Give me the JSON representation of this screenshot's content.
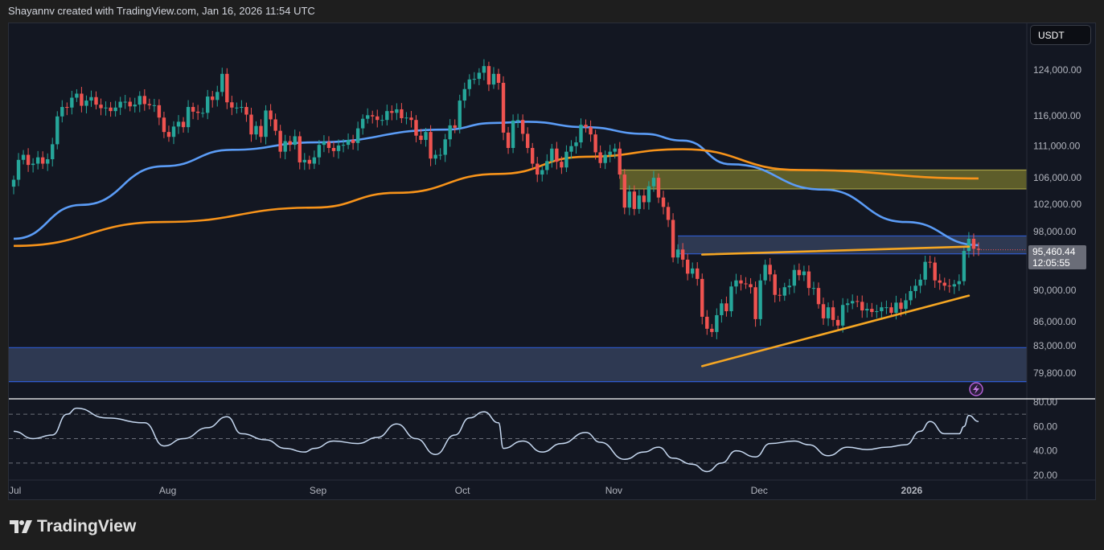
{
  "header": {
    "caption": "Shayannv created with TradingView.com, Jan 16, 2026 11:54 UTC"
  },
  "currency": "USDT",
  "last_price": {
    "price": "95,460.44",
    "countdown": "12:05:55"
  },
  "logo": {
    "text": "TradingView"
  },
  "colors": {
    "up": "#26a69a",
    "down": "#ef5350",
    "ma_fast": "#5b9cf6",
    "ma_slow": "#f7931a",
    "trendline": "#f5a623",
    "supply_zone": "#6b6a2c",
    "demand_zone": "#34405a",
    "rsi": "#c6d8f0",
    "bg": "#131722"
  },
  "icons": {
    "alert": "lightning-icon"
  },
  "chart_data": [
    {
      "type": "candlestick",
      "scale": "log",
      "start_date": "2025-07-01",
      "y_ticks": [
        "124,000.00",
        "116,000.00",
        "111,000.00",
        "106,000.00",
        "102,000.00",
        "98,000.00",
        "90,000.00",
        "86,000.00",
        "83,000.00",
        "79,800.00"
      ],
      "y_tick_values": [
        124000,
        116000,
        111000,
        106000,
        102000,
        98000,
        90000,
        86000,
        83000,
        79800
      ],
      "x_ticks": [
        {
          "label": "Jul",
          "date": "2025-07-01"
        },
        {
          "label": "Aug",
          "date": "2025-08-01"
        },
        {
          "label": "Sep",
          "date": "2025-09-01"
        },
        {
          "label": "Oct",
          "date": "2025-10-01"
        },
        {
          "label": "Nov",
          "date": "2025-11-01"
        },
        {
          "label": "Dec",
          "date": "2025-12-01"
        },
        {
          "label": "2026",
          "date": "2026-01-01"
        }
      ],
      "closes_k": [
        105.7,
        108.8,
        109.6,
        108.0,
        108.2,
        109.2,
        108.2,
        108.9,
        111.3,
        115.9,
        117.5,
        117.4,
        119.1,
        119.8,
        117.7,
        118.6,
        119.2,
        117.9,
        117.3,
        117.4,
        116.8,
        117.4,
        118.4,
        118.4,
        117.6,
        117.9,
        119.4,
        118.0,
        117.8,
        117.8,
        115.7,
        113.3,
        112.5,
        114.2,
        115.0,
        114.1,
        117.5,
        116.7,
        116.5,
        116.5,
        119.3,
        118.7,
        120.1,
        123.3,
        118.3,
        117.4,
        117.4,
        117.5,
        116.2,
        112.9,
        114.3,
        112.5,
        116.9,
        115.4,
        113.5,
        110.1,
        111.8,
        111.2,
        112.6,
        108.4,
        108.8,
        108.2,
        109.2,
        111.2,
        111.7,
        110.7,
        110.2,
        111.1,
        111.2,
        112.0,
        111.5,
        113.9,
        115.5,
        116.1,
        115.9,
        115.3,
        115.3,
        116.8,
        116.5,
        117.1,
        115.6,
        115.7,
        115.3,
        112.7,
        112.0,
        113.3,
        109.0,
        109.6,
        109.6,
        112.1,
        114.4,
        114.0,
        118.6,
        120.6,
        122.3,
        122.4,
        123.5,
        124.7,
        121.4,
        123.3,
        121.7,
        113.2,
        110.7,
        115.2,
        115.3,
        113.0,
        110.7,
        108.2,
        106.5,
        107.2,
        108.6,
        110.6,
        108.5,
        107.6,
        110.1,
        111.0,
        111.6,
        114.5,
        114.1,
        112.9,
        110.0,
        108.3,
        109.6,
        110.1,
        110.6,
        106.5,
        101.5,
        103.9,
        101.3,
        103.3,
        102.3,
        104.7,
        106.0,
        103.0,
        101.6,
        99.7,
        94.4,
        95.5,
        94.1,
        92.2,
        92.9,
        91.5,
        86.6,
        85.1,
        84.7,
        86.8,
        88.3,
        87.3,
        90.5,
        91.3,
        90.9,
        90.8,
        90.4,
        86.3,
        91.3,
        93.4,
        92.1,
        89.4,
        89.3,
        90.4,
        90.6,
        92.7,
        92.0,
        92.5,
        90.3,
        90.3,
        88.2,
        86.4,
        87.8,
        86.2,
        85.5,
        88.1,
        88.3,
        88.6,
        88.5,
        87.4,
        87.6,
        87.2,
        87.3,
        87.8,
        87.8,
        87.1,
        88.4,
        87.6,
        88.7,
        89.9,
        90.6,
        91.4,
        93.8,
        93.7,
        91.3,
        91.0,
        90.6,
        90.5,
        90.8,
        91.2,
        95.3,
        97.0,
        95.6,
        95.46
      ],
      "moving_averages": [
        {
          "points": [
            [
              "2025-07-01",
              97.0
            ],
            [
              "2025-07-15",
              101.9
            ],
            [
              "2025-08-01",
              107.8
            ],
            [
              "2025-08-15",
              110.4
            ],
            [
              "2025-09-01",
              111.6
            ],
            [
              "2025-09-28",
              113.7
            ],
            [
              "2025-10-08",
              114.8
            ],
            [
              "2025-10-15",
              115.0
            ],
            [
              "2025-10-27",
              114.1
            ],
            [
              "2025-11-08",
              113.0
            ],
            [
              "2025-11-16",
              111.9
            ],
            [
              "2025-11-26",
              108.1
            ],
            [
              "2025-12-15",
              104.2
            ],
            [
              "2026-01-01",
              99.4
            ],
            [
              "2026-01-16",
              96.1
            ]
          ]
        },
        {
          "points": [
            [
              "2025-07-01",
              96.0
            ],
            [
              "2025-08-01",
              99.4
            ],
            [
              "2025-09-01",
              101.5
            ],
            [
              "2025-09-18",
              103.7
            ],
            [
              "2025-10-09",
              106.6
            ],
            [
              "2025-10-27",
              109.3
            ],
            [
              "2025-11-16",
              110.5
            ],
            [
              "2025-12-10",
              107.2
            ],
            [
              "2026-01-16",
              105.9
            ]
          ]
        }
      ],
      "zones": [
        {
          "kind": "supply",
          "from": "2025-11-03",
          "top": 107.2,
          "bottom": 104.3
        },
        {
          "kind": "resistance",
          "from": "2025-11-15",
          "top": 97.4,
          "bottom": 94.9
        },
        {
          "kind": "support",
          "from": "2025-06-30",
          "top": 82.8,
          "bottom": 78.8
        }
      ],
      "trendlines": [
        {
          "from": [
            "2025-11-20",
            94.8
          ],
          "to": [
            "2026-01-14",
            95.9
          ]
        },
        {
          "from": [
            "2025-11-20",
            80.6
          ],
          "to": [
            "2026-01-14",
            89.3
          ]
        }
      ]
    },
    {
      "type": "line",
      "name": "",
      "y_ticks": [
        "80.00",
        "60.00",
        "40.00",
        "20.00"
      ],
      "y_tick_values": [
        80,
        60,
        40,
        20
      ],
      "levels": [
        70,
        50,
        30
      ],
      "points": [
        [
          "2025-07-01",
          56
        ],
        [
          "2025-07-05",
          50
        ],
        [
          "2025-07-09",
          53
        ],
        [
          "2025-07-12",
          70
        ],
        [
          "2025-07-14",
          75
        ],
        [
          "2025-07-20",
          67
        ],
        [
          "2025-07-28",
          63
        ],
        [
          "2025-08-01",
          44
        ],
        [
          "2025-08-05",
          50
        ],
        [
          "2025-08-10",
          59
        ],
        [
          "2025-08-14",
          68
        ],
        [
          "2025-08-17",
          54
        ],
        [
          "2025-08-22",
          49
        ],
        [
          "2025-08-26",
          42
        ],
        [
          "2025-08-30",
          39
        ],
        [
          "2025-09-01",
          42
        ],
        [
          "2025-09-05",
          48
        ],
        [
          "2025-09-10",
          46
        ],
        [
          "2025-09-14",
          51
        ],
        [
          "2025-09-18",
          62
        ],
        [
          "2025-09-22",
          50
        ],
        [
          "2025-09-26",
          37
        ],
        [
          "2025-09-30",
          53
        ],
        [
          "2025-10-03",
          67
        ],
        [
          "2025-10-06",
          72
        ],
        [
          "2025-10-09",
          63
        ],
        [
          "2025-10-10",
          42
        ],
        [
          "2025-10-14",
          48
        ],
        [
          "2025-10-18",
          39
        ],
        [
          "2025-10-22",
          46
        ],
        [
          "2025-10-27",
          55
        ],
        [
          "2025-10-30",
          47
        ],
        [
          "2025-11-04",
          33
        ],
        [
          "2025-11-08",
          39
        ],
        [
          "2025-11-11",
          43
        ],
        [
          "2025-11-14",
          34
        ],
        [
          "2025-11-18",
          29
        ],
        [
          "2025-11-21",
          23
        ],
        [
          "2025-11-24",
          30
        ],
        [
          "2025-11-27",
          40
        ],
        [
          "2025-12-01",
          35
        ],
        [
          "2025-12-04",
          46
        ],
        [
          "2025-12-09",
          48
        ],
        [
          "2025-12-12",
          45
        ],
        [
          "2025-12-16",
          36
        ],
        [
          "2025-12-20",
          43
        ],
        [
          "2025-12-24",
          41
        ],
        [
          "2025-12-28",
          43
        ],
        [
          "2026-01-01",
          45
        ],
        [
          "2026-01-04",
          56
        ],
        [
          "2026-01-06",
          64
        ],
        [
          "2026-01-09",
          54
        ],
        [
          "2026-01-12",
          54
        ],
        [
          "2026-01-13",
          60
        ],
        [
          "2026-01-14",
          69
        ],
        [
          "2026-01-16",
          64
        ]
      ]
    }
  ]
}
